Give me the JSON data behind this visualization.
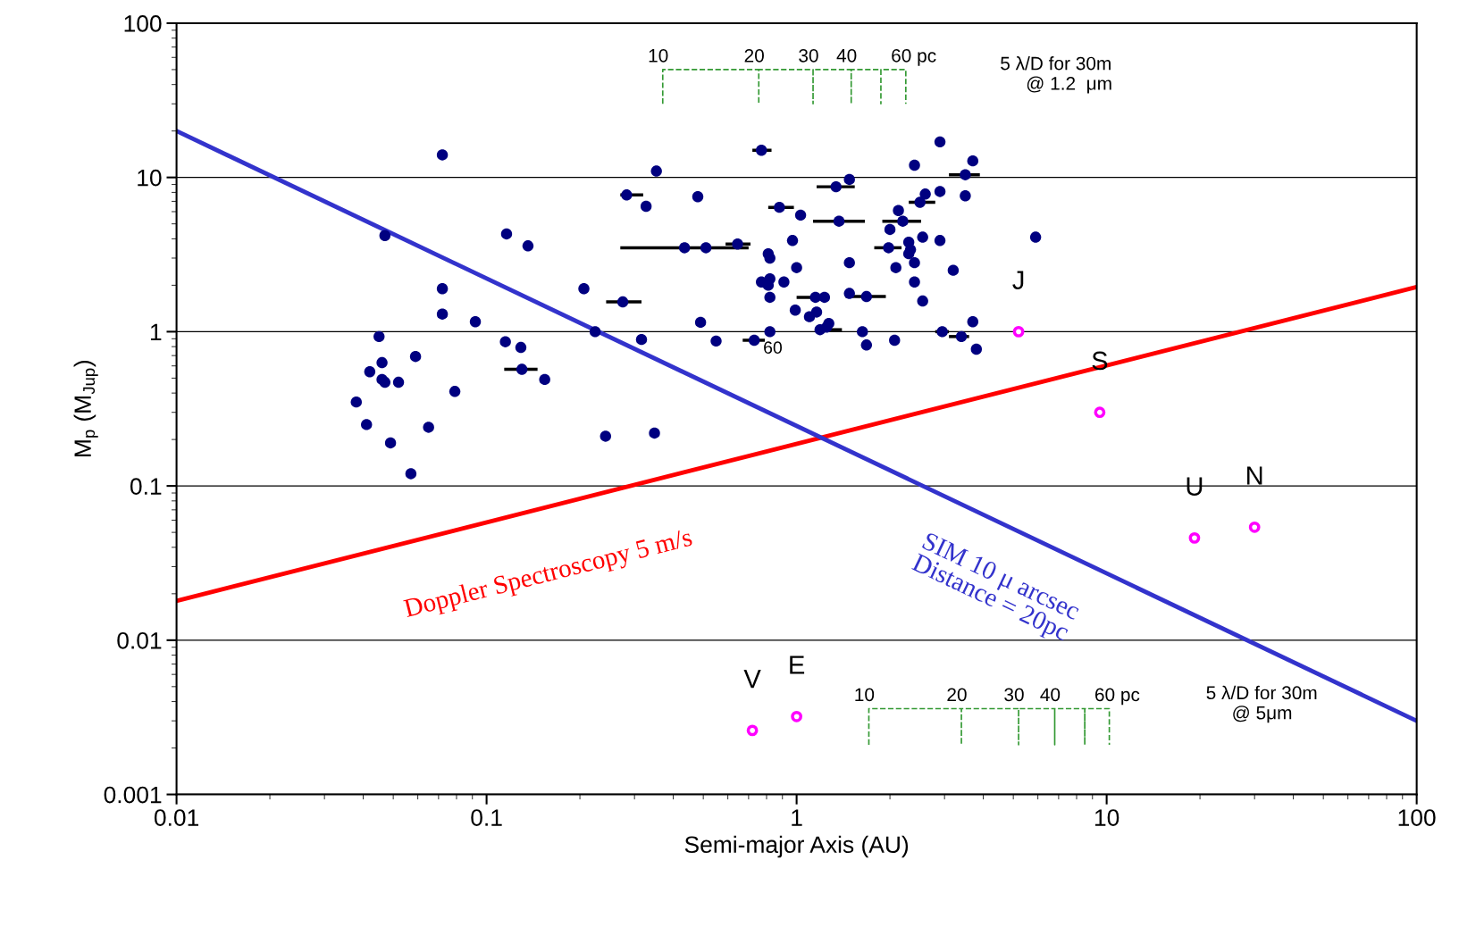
{
  "chart_data": {
    "type": "scatter",
    "xlabel": "Semi-major Axis (AU)",
    "ylabel": "M$_{p}$ (M$_{Jup}$)",
    "log": "xy",
    "grid": "y",
    "xlim": [
      0.01,
      100
    ],
    "xticks": [
      0.01,
      0.1,
      1,
      10,
      100
    ],
    "ylim": [
      0.001,
      100
    ],
    "yticks": [
      0.001,
      0.01,
      0.1,
      1,
      10,
      100
    ],
    "series": [
      {
        "color": "#000080",
        "marker": "circle",
        "x": [
          0.038,
          0.041,
          0.042,
          0.045,
          0.046,
          0.046,
          0.047,
          0.047,
          0.049,
          0.052,
          0.057,
          0.059,
          0.065,
          0.072,
          0.072,
          0.072,
          0.079,
          0.092,
          0.115,
          0.116,
          0.129,
          0.13,
          0.136,
          0.154,
          0.206,
          0.224,
          0.242,
          0.275,
          0.283,
          0.316,
          0.327,
          0.348,
          0.353,
          0.435,
          0.48,
          0.49,
          0.51,
          0.55,
          0.645,
          0.73,
          0.77,
          0.88,
          1.03,
          0.97,
          0.81,
          0.82,
          1.0,
          0.77,
          0.82,
          0.81,
          0.91,
          0.82,
          0.99,
          1.15,
          1.23,
          1.1,
          1.16,
          1.19,
          1.25,
          1.27,
          0.82,
          1.63,
          1.68,
          2.07,
          1.48,
          1.68,
          1.48,
          1.37,
          1.34,
          1.48,
          2.13,
          2.2,
          2.0,
          1.98,
          2.3,
          2.33,
          2.3,
          2.4,
          2.09,
          2.55,
          2.9,
          2.4,
          2.55,
          3.2,
          2.4,
          2.9,
          3.7,
          3.5,
          3.5,
          2.9,
          2.6,
          2.5,
          5.9,
          2.95,
          3.4,
          3.7,
          3.8
        ],
        "values": [
          0.35,
          0.25,
          0.55,
          0.93,
          0.63,
          0.49,
          0.47,
          4.2,
          0.19,
          0.47,
          0.12,
          0.69,
          0.24,
          14,
          1.9,
          1.3,
          0.41,
          1.16,
          0.86,
          4.3,
          0.79,
          0.57,
          3.6,
          0.49,
          1.9,
          1.0,
          0.21,
          1.56,
          7.7,
          0.89,
          6.5,
          0.22,
          11,
          3.5,
          7.5,
          1.15,
          3.5,
          0.87,
          3.7,
          0.88,
          15,
          6.4,
          5.7,
          3.9,
          3.2,
          3.0,
          2.6,
          2.1,
          2.2,
          2.0,
          2.1,
          1.67,
          1.38,
          1.67,
          1.67,
          1.25,
          1.34,
          1.03,
          1.07,
          1.13,
          1.0,
          1.0,
          0.82,
          0.88,
          1.77,
          1.69,
          2.8,
          5.2,
          8.7,
          9.7,
          6.1,
          5.2,
          4.6,
          3.5,
          3.8,
          3.4,
          3.2,
          2.8,
          2.6,
          4.1,
          3.9,
          2.1,
          1.58,
          2.5,
          12,
          17,
          12.8,
          10.4,
          7.6,
          8.1,
          7.8,
          6.9,
          4.1,
          1.0,
          0.93,
          1.16,
          0.77
        ],
        "xerrors": [
          null,
          null,
          null,
          null,
          null,
          null,
          null,
          null,
          null,
          null,
          null,
          null,
          null,
          null,
          null,
          null,
          null,
          null,
          null,
          null,
          null,
          [
            0.114,
            0.146
          ],
          null,
          null,
          null,
          null,
          null,
          [
            0.243,
            0.316
          ],
          [
            0.27,
            0.32
          ],
          null,
          null,
          null,
          null,
          [
            0.27,
            0.7
          ],
          null,
          null,
          null,
          null,
          [
            0.59,
            0.71
          ],
          [
            0.67,
            0.79
          ],
          [
            0.72,
            0.83
          ],
          [
            0.81,
            0.98
          ],
          null,
          null,
          null,
          null,
          null,
          null,
          null,
          null,
          null,
          null,
          null,
          [
            1.0,
            1.25
          ],
          null,
          null,
          null,
          [
            1.16,
            1.4
          ],
          null,
          null,
          null,
          null,
          null,
          null,
          null,
          [
            1.44,
            1.94
          ],
          null,
          [
            1.13,
            1.66
          ],
          [
            1.16,
            1.54
          ],
          null,
          null,
          [
            1.89,
            2.52
          ],
          null,
          [
            1.78,
            2.18
          ],
          null,
          null,
          null,
          null,
          null,
          null,
          null,
          null,
          null,
          null,
          null,
          null,
          null,
          [
            3.1,
            3.9
          ],
          null,
          null,
          null,
          [
            2.3,
            2.8
          ],
          null,
          [
            2.8,
            3.1
          ],
          [
            3.1,
            3.6
          ],
          null,
          null
        ]
      },
      {
        "color": "#ff00ff",
        "marker": "circle",
        "x": [
          0.72,
          1.0,
          5.2,
          9.5,
          19.2,
          30
        ],
        "values": [
          0.0026,
          0.0032,
          1.0,
          0.3,
          0.046,
          0.054
        ]
      },
      {
        "type": "line",
        "name": "Doppler Spectroscopy 5 m/s",
        "color": "#ff0000",
        "x": [
          0.01,
          100
        ],
        "values": [
          0.018,
          1.95
        ]
      },
      {
        "type": "line",
        "name": "SIM 10 μ arcsec\nDistance = 20pc",
        "color": "#3333cc",
        "x": [
          0.01,
          100
        ],
        "values": [
          20,
          0.003
        ]
      },
      {
        "type": "line",
        "color": "#339933",
        "line_style": "dashed",
        "x": [
          0.37,
          0.37,
          0.755,
          0.755,
          0.755,
          1.13,
          1.13,
          1.13,
          1.5,
          1.5,
          1.5,
          1.87,
          1.87,
          1.87,
          2.25,
          2.25
        ],
        "values": [
          30,
          50,
          50,
          30,
          50,
          50,
          30,
          50,
          50,
          30,
          50,
          50,
          30,
          50,
          50,
          30
        ]
      },
      {
        "type": "line",
        "color": "#339933",
        "line_style": "dashed",
        "x": [
          1.71,
          1.71,
          3.4,
          3.4,
          3.4,
          5.2,
          5.2,
          5.2,
          6.8,
          6.8,
          6.8,
          8.5,
          8.5,
          8.5,
          10.2,
          10.2
        ],
        "values": [
          0.0021,
          0.0036,
          0.0036,
          0.0021,
          0.0036,
          0.0036,
          0.0021,
          0.0036,
          0.0036,
          0.0021,
          0.0036,
          0.0036,
          0.0021,
          0.0036,
          0.0036,
          0.0021
        ]
      }
    ],
    "annotations": [
      {
        "text": "V",
        "x": 0.72,
        "y": 0.0026
      },
      {
        "text": "E",
        "x": 1.0,
        "y": 0.0032
      },
      {
        "text": "J",
        "x": 5.2,
        "y": 1.0
      },
      {
        "text": "S",
        "x": 9.5,
        "y": 0.3
      },
      {
        "text": "U",
        "x": 19.2,
        "y": 0.046
      },
      {
        "text": "N",
        "x": 30,
        "y": 0.054
      },
      {
        "text": "10",
        "x": 0.37,
        "y": 50
      },
      {
        "text": "20",
        "x": 0.755,
        "y": 50
      },
      {
        "text": "30",
        "x": 1.13,
        "y": 50
      },
      {
        "text": "40",
        "x": 1.5,
        "y": 50
      },
      {
        "text": "60 pc",
        "x": 2.25,
        "y": 50
      },
      {
        "text": "10",
        "x": 1.71,
        "y": 0.0036
      },
      {
        "text": "20",
        "x": 3.4,
        "y": 0.0036
      },
      {
        "text": "30",
        "x": 5.2,
        "y": 0.0036
      },
      {
        "text": "40",
        "x": 6.8,
        "y": 0.0036
      },
      {
        "text": "60 pc",
        "x": 10.2,
        "y": 0.0036
      },
      "5 λ/D for 30m\n     @ 1.2  μm",
      "5 λ/D for 30m\n     @ 5μm",
      "60"
    ]
  }
}
